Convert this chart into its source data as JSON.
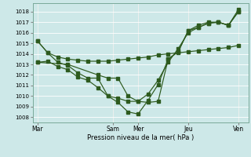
{
  "background_color": "#cde8e8",
  "grid_color": "#b8d8d8",
  "line_color": "#2d5a1e",
  "ylim": [
    1007.5,
    1018.8
  ],
  "yticks": [
    1008,
    1009,
    1010,
    1011,
    1012,
    1013,
    1014,
    1015,
    1016,
    1017,
    1018
  ],
  "xlabel": "Pression niveau de la mer( hPa )",
  "xtick_labels": [
    "Mar",
    "Sam",
    "Mer",
    "Jeu",
    "Ven"
  ],
  "xtick_positions": [
    0,
    15,
    20,
    30,
    40
  ],
  "xlim": [
    -1,
    42
  ],
  "line1_x": [
    0,
    2,
    4,
    6,
    8,
    10,
    12,
    14,
    16,
    18,
    20,
    22,
    24,
    26,
    28,
    30,
    32,
    34,
    36,
    38,
    40
  ],
  "line1_y": [
    1015.2,
    1014.1,
    1013.7,
    1013.5,
    1013.4,
    1013.3,
    1013.3,
    1013.3,
    1013.4,
    1013.5,
    1013.6,
    1013.7,
    1013.9,
    1014.0,
    1014.1,
    1014.2,
    1014.3,
    1014.4,
    1014.5,
    1014.6,
    1014.8
  ],
  "line2_x": [
    0,
    2,
    4,
    6,
    8,
    10,
    12,
    14,
    16,
    18,
    20,
    22,
    24,
    26,
    28,
    30,
    32,
    34,
    36,
    38,
    40
  ],
  "line2_y": [
    1015.2,
    1014.1,
    1013.2,
    1012.9,
    1012.2,
    1011.7,
    1011.7,
    1010.0,
    1009.8,
    1009.5,
    1009.5,
    1010.2,
    1011.5,
    1013.2,
    1014.5,
    1016.0,
    1016.5,
    1016.9,
    1017.0,
    1016.7,
    1018.2
  ],
  "line3_x": [
    0,
    2,
    4,
    6,
    8,
    10,
    12,
    14,
    16,
    18,
    20,
    22,
    24,
    26,
    28,
    30,
    32,
    34,
    36,
    38,
    40
  ],
  "line3_y": [
    1013.2,
    1013.3,
    1012.8,
    1012.5,
    1011.8,
    1011.5,
    1010.8,
    1010.0,
    1009.4,
    1008.5,
    1008.3,
    1009.6,
    1011.1,
    1013.5,
    1014.2,
    1016.2,
    1016.7,
    1017.0,
    1017.0,
    1016.7,
    1018.0
  ],
  "line4_x": [
    0,
    6,
    12,
    14,
    16,
    18,
    20,
    22,
    24,
    26,
    28,
    30,
    32,
    34,
    36,
    38,
    40
  ],
  "line4_y": [
    1013.2,
    1013.0,
    1012.0,
    1011.7,
    1011.7,
    1010.0,
    1009.5,
    1009.4,
    1009.5,
    1013.5,
    1014.2,
    1016.2,
    1016.5,
    1016.9,
    1017.0,
    1016.7,
    1018.0
  ],
  "vline_color": "#3a5a3a"
}
